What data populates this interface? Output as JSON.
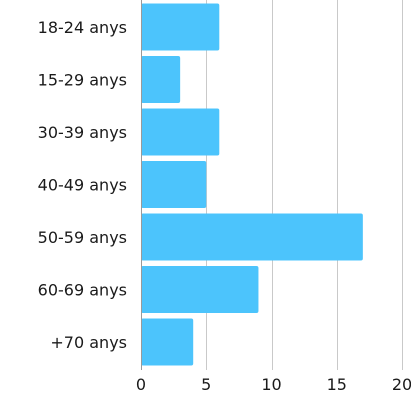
{
  "chart_data": {
    "type": "bar",
    "orientation": "horizontal",
    "categories": [
      "18-24 anys",
      "15-29 anys",
      "30-39 anys",
      "40-49 anys",
      "50-59 anys",
      "60-69 anys",
      "+70 anys"
    ],
    "values": [
      6,
      3,
      6,
      5,
      17,
      9,
      4
    ],
    "xlim": [
      0,
      20
    ],
    "x_ticks": [
      0,
      5,
      10,
      15,
      20
    ],
    "grid": true,
    "legend": "none",
    "bar_color": "#4cc4fc",
    "title": "",
    "xlabel": "",
    "ylabel": ""
  }
}
